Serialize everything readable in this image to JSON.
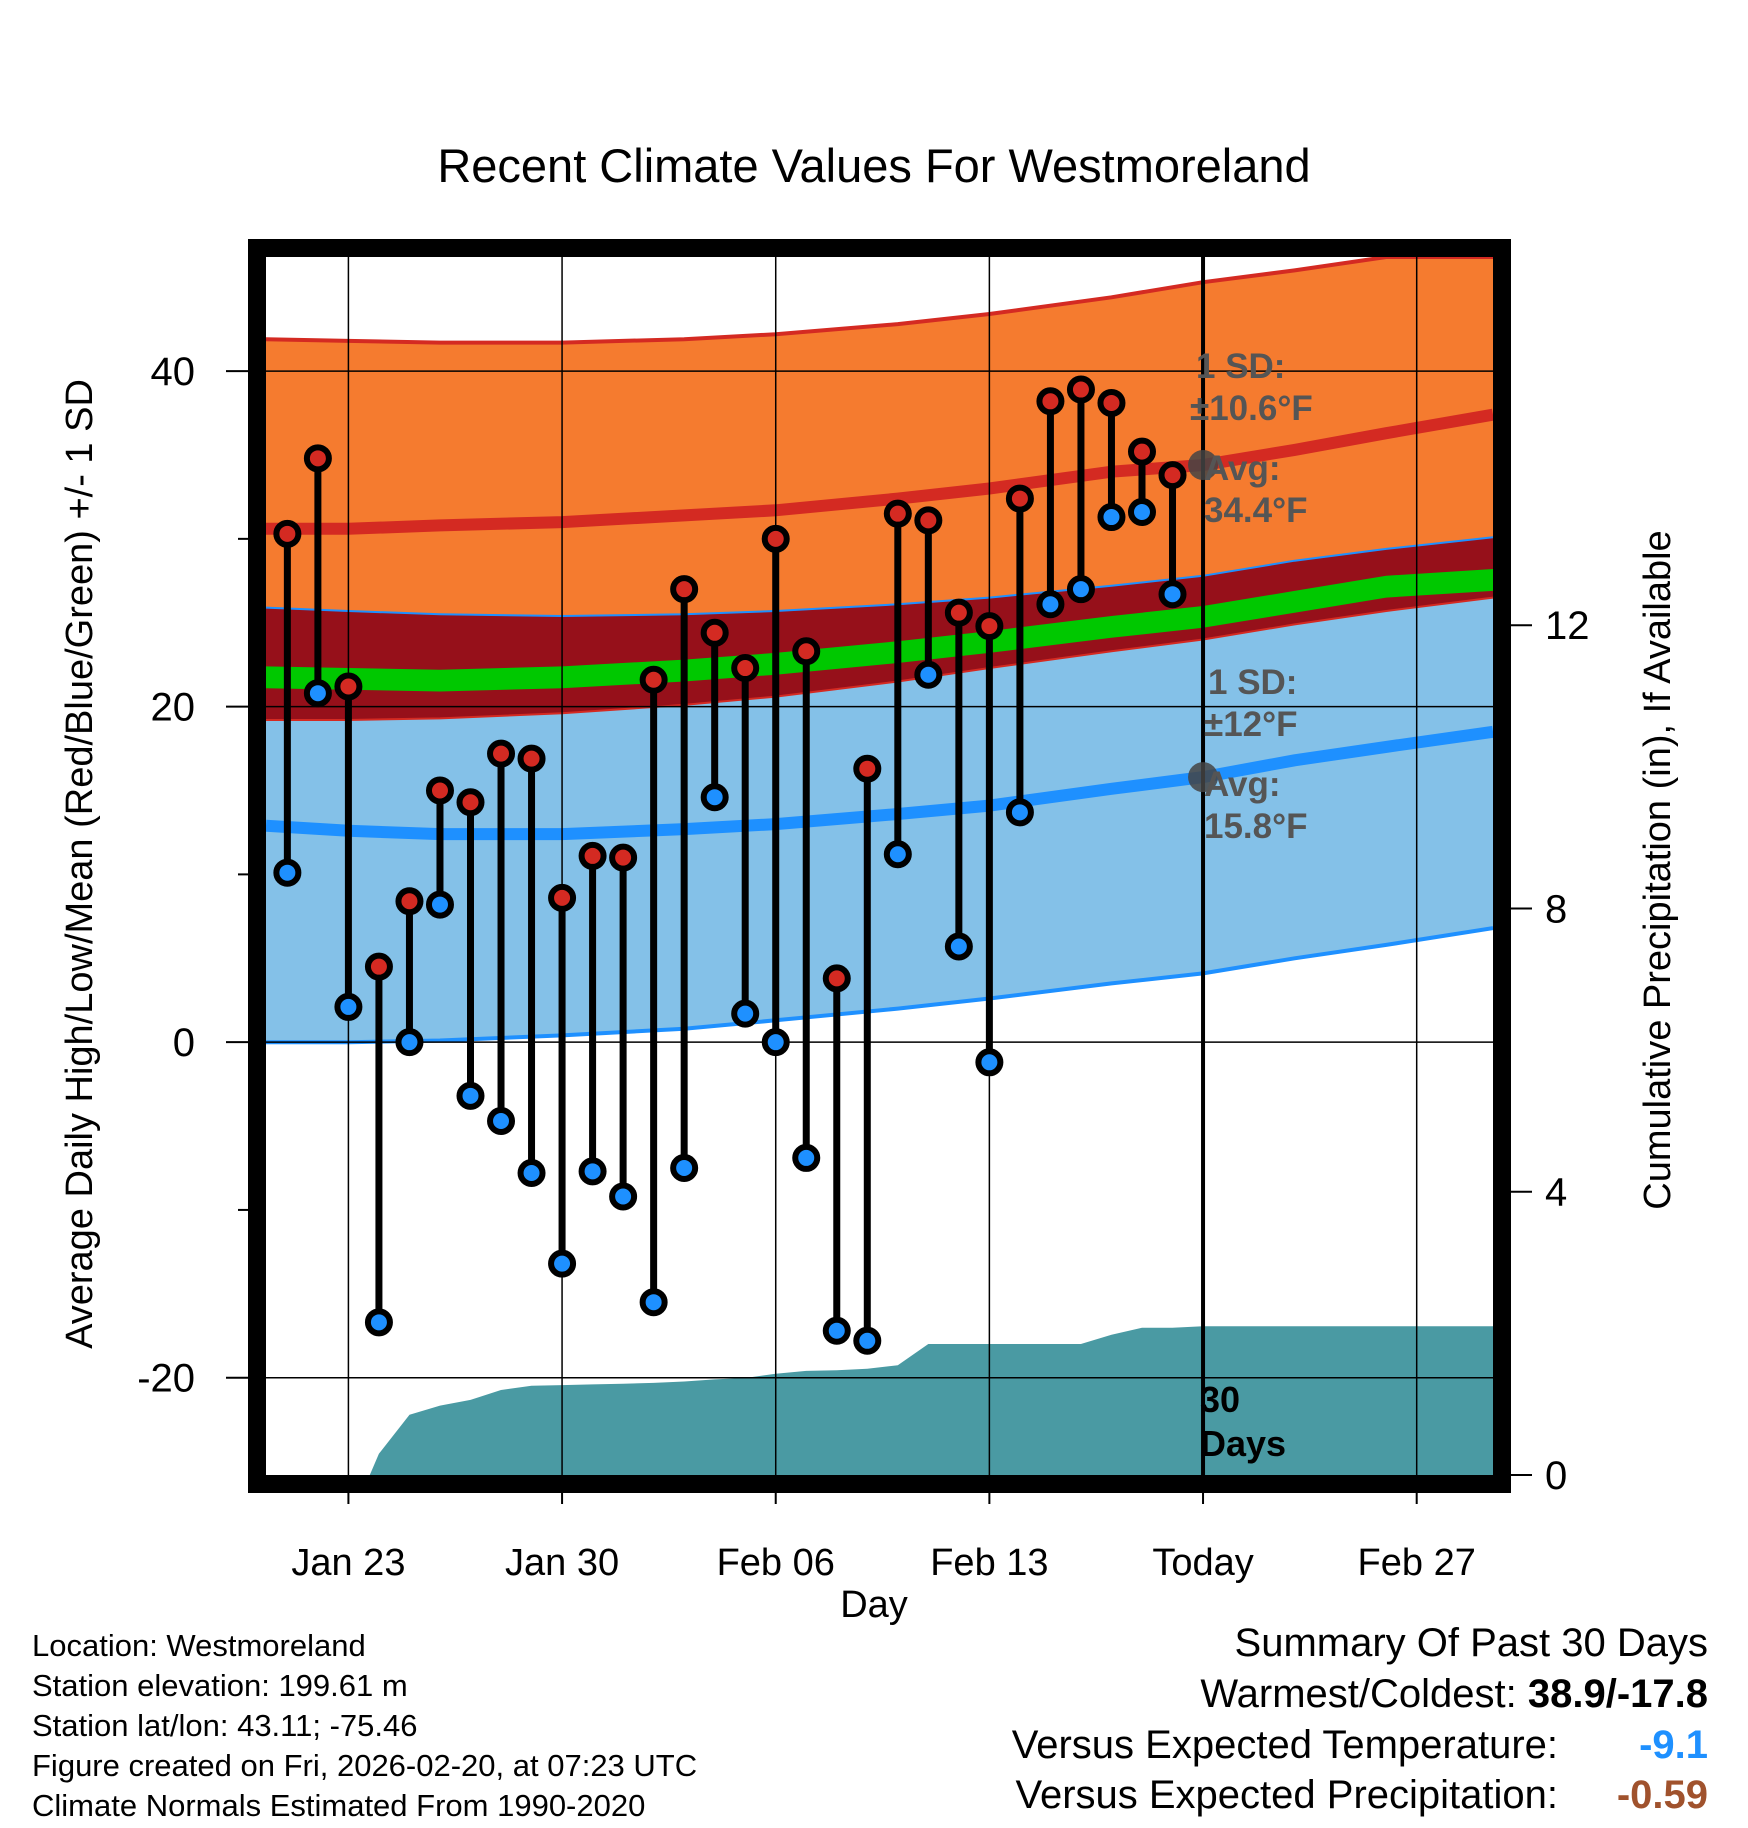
{
  "chart_data": {
    "type": "line",
    "title": "Recent Climate Values For Westmoreland",
    "xlabel": "Day",
    "ylabel_left": "Average Daily High/Low/Mean (Red/Blue/Green) +/- 1 SD",
    "ylabel_right": "Cumulative Precipitation (in), If Available",
    "xlim": [
      -1.7,
      38.5
    ],
    "ylim": [
      -25.8,
      46.8
    ],
    "y2lim": [
      0,
      17.2
    ],
    "x_ticks": [
      {
        "x": 1,
        "label": "Jan 23"
      },
      {
        "x": 8,
        "label": "Jan 30"
      },
      {
        "x": 15,
        "label": "Feb 06"
      },
      {
        "x": 22,
        "label": "Feb 13"
      },
      {
        "x": 29,
        "label": "Today"
      },
      {
        "x": 36,
        "label": "Feb 27"
      }
    ],
    "y_ticks": [
      {
        "y": -20,
        "label": "-20"
      },
      {
        "y": 0,
        "label": "0"
      },
      {
        "y": 20,
        "label": "20"
      },
      {
        "y": 40,
        "label": "40"
      }
    ],
    "y_minor_ticks": [
      -10,
      10,
      30
    ],
    "y2_ticks": [
      {
        "y": 0,
        "label": "0"
      },
      {
        "y": 4,
        "label": "4"
      },
      {
        "y": 8,
        "label": "8"
      },
      {
        "y": 12,
        "label": "12"
      }
    ],
    "normals": {
      "x": [
        -1.7,
        1,
        4,
        8,
        12,
        15,
        19,
        22,
        26,
        29,
        32,
        35,
        38.5
      ],
      "high_plus_sd": [
        41.9,
        41.8,
        41.7,
        41.7,
        41.9,
        42.2,
        42.8,
        43.4,
        44.4,
        45.3,
        46.0,
        46.8,
        46.8
      ],
      "high_mean": [
        30.6,
        30.6,
        30.8,
        31.0,
        31.4,
        31.7,
        32.4,
        33.0,
        34.0,
        34.4,
        35.3,
        36.3,
        37.4
      ],
      "high_minus_sd": [
        25.9,
        25.7,
        25.5,
        25.4,
        25.5,
        25.7,
        26.1,
        26.5,
        27.2,
        27.8,
        28.7,
        29.4,
        30.1
      ],
      "mean_upper": [
        22.4,
        22.3,
        22.2,
        22.4,
        22.8,
        23.2,
        23.9,
        24.5,
        25.4,
        26.0,
        26.9,
        27.8,
        28.2
      ],
      "mean_lower": [
        21.1,
        21.0,
        20.9,
        21.1,
        21.5,
        21.9,
        22.6,
        23.2,
        24.1,
        24.7,
        25.6,
        26.5,
        26.9
      ],
      "low_plus_sd": [
        19.2,
        19.2,
        19.3,
        19.6,
        20.1,
        20.6,
        21.5,
        22.3,
        23.3,
        24.0,
        24.9,
        25.7,
        26.5
      ],
      "low_mean": [
        12.9,
        12.6,
        12.4,
        12.4,
        12.7,
        13.0,
        13.6,
        14.1,
        15.1,
        15.8,
        16.8,
        17.6,
        18.5
      ],
      "low_minus_sd": [
        0.0,
        0.0,
        0.1,
        0.4,
        0.8,
        1.3,
        2.0,
        2.6,
        3.5,
        4.1,
        5.0,
        5.8,
        6.8
      ]
    },
    "series": [
      {
        "name": "High",
        "x": [
          -1,
          0,
          1,
          2,
          3,
          4,
          5,
          6,
          7,
          8,
          9,
          10,
          11,
          12,
          13,
          14,
          15,
          16,
          17,
          18,
          19,
          20,
          21,
          22,
          23,
          24,
          25,
          26,
          27,
          28
        ],
        "values": [
          30.3,
          34.8,
          21.2,
          4.5,
          8.4,
          15.0,
          14.3,
          17.2,
          16.9,
          8.6,
          11.1,
          11.0,
          21.6,
          27.0,
          24.4,
          22.3,
          30.0,
          23.3,
          3.8,
          16.3,
          31.5,
          31.1,
          25.6,
          24.8,
          32.4,
          38.2,
          38.9,
          38.1,
          35.2,
          33.8
        ]
      },
      {
        "name": "Low",
        "x": [
          -1,
          0,
          1,
          2,
          3,
          4,
          5,
          6,
          7,
          8,
          9,
          10,
          11,
          12,
          13,
          14,
          15,
          16,
          17,
          18,
          19,
          20,
          21,
          22,
          23,
          24,
          25,
          26,
          27,
          28
        ],
        "values": [
          10.1,
          20.8,
          2.1,
          -16.7,
          0.0,
          8.2,
          -3.2,
          -4.7,
          -7.8,
          -13.2,
          -7.7,
          -9.2,
          -15.5,
          -7.5,
          14.6,
          1.7,
          0.0,
          -6.9,
          -17.2,
          -17.8,
          11.2,
          21.9,
          5.7,
          -1.2,
          13.7,
          26.1,
          27.0,
          31.3,
          31.6,
          26.7
        ]
      }
    ],
    "precip": {
      "x": [
        1.7,
        2,
        3,
        4,
        5,
        6,
        7,
        8,
        9,
        10,
        11,
        12,
        13,
        14,
        15,
        16,
        17,
        18,
        19,
        20,
        21,
        22,
        23,
        24,
        25,
        26,
        27,
        28,
        29,
        38.5
      ],
      "values": [
        0,
        0.3,
        0.85,
        0.98,
        1.06,
        1.2,
        1.26,
        1.27,
        1.28,
        1.29,
        1.3,
        1.32,
        1.35,
        1.37,
        1.43,
        1.47,
        1.48,
        1.5,
        1.55,
        1.85,
        1.85,
        1.85,
        1.85,
        1.85,
        1.85,
        1.98,
        2.08,
        2.08,
        2.1,
        2.1
      ]
    },
    "today_x": 29,
    "high_annotation": {
      "sd_label": "1 SD:",
      "sd_value": "±10.6°F",
      "avg_label": "Avg:",
      "avg_value": "34.4°F",
      "avg": 34.4
    },
    "low_annotation": {
      "sd_label": "1 SD:",
      "sd_value": "±12°F",
      "avg_label": "Avg:",
      "avg_value": "15.8°F",
      "avg": 15.8
    },
    "days_label_1": "30",
    "days_label_2": "Days"
  },
  "colors": {
    "high_band": "#f57b2f",
    "high_line": "#d42a22",
    "dark_red": "#96101a",
    "mean_band": "#00c800",
    "low_band": "#84c1e8",
    "low_line": "#1e90ff",
    "precip": "#4a9aa3",
    "marker_high": "#d42a22",
    "marker_low": "#1e90ff",
    "annotation": "#555555",
    "cold": "#1e90ff",
    "dry": "#a0522d"
  },
  "info": {
    "location": "Location: Westmoreland",
    "elevation": "Station elevation: 199.61 m",
    "latlon": "Station lat/lon: 43.11; -75.46",
    "created": "Figure created on Fri, 2026-02-20, at 07:23 UTC",
    "normals": "Climate Normals Estimated From 1990-2020"
  },
  "summary": {
    "title": "Summary Of Past 30 Days",
    "warm_cold_label": "Warmest/Coldest: ",
    "warm_cold_value": "38.9/-17.8",
    "temp_label": "Versus Expected Temperature:",
    "temp_value": "-9.1",
    "precip_label": "Versus Expected Precipitation:",
    "precip_value": "-0.59"
  }
}
